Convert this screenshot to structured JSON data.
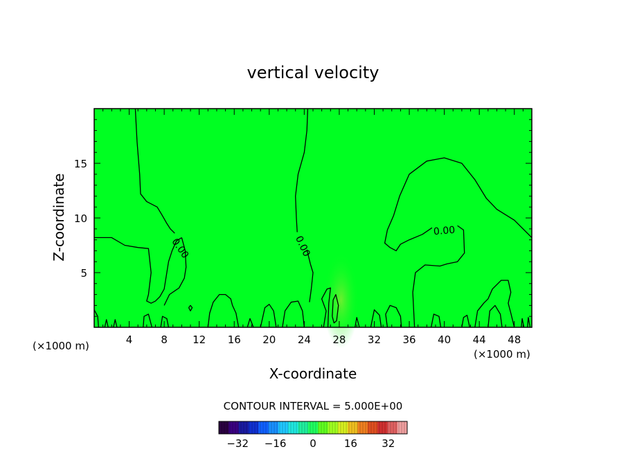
{
  "chart_data": {
    "type": "contour",
    "title": "vertical velocity",
    "xlabel": "X-coordinate",
    "ylabel": "Z-coordinate",
    "x_unit_left": "(×1000 m)",
    "x_unit_right": "(×1000 m)",
    "xlim": [
      0,
      50
    ],
    "ylim": [
      0,
      20
    ],
    "x_ticks": [
      4,
      8,
      12,
      16,
      20,
      24,
      28,
      32,
      36,
      40,
      44,
      48
    ],
    "y_ticks": [
      5,
      10,
      15
    ],
    "field_color": "#00ff22",
    "contour_interval_text": "CONTOUR INTERVAL = 5.000E+00",
    "contour_labels": [
      {
        "text": "0.00",
        "x": 9.8,
        "y": 7.2,
        "angle": 55
      },
      {
        "text": "0.00",
        "x": 23.8,
        "y": 7.4,
        "angle": 65
      },
      {
        "text": "0.00",
        "x": 40.0,
        "y": 8.8,
        "angle": -5
      }
    ],
    "contours": [
      {
        "points": [
          [
            0,
            8.2
          ],
          [
            2,
            8.2
          ],
          [
            3.5,
            7.5
          ],
          [
            5,
            7.3
          ],
          [
            6.2,
            7.2
          ],
          [
            6.5,
            5
          ],
          [
            6.2,
            3
          ],
          [
            6,
            2.4
          ],
          [
            6.5,
            2.2
          ],
          [
            7,
            2.4
          ],
          [
            7.5,
            2.8
          ],
          [
            8,
            3.5
          ],
          [
            8.3,
            5
          ],
          [
            8.5,
            6
          ],
          [
            8.9,
            7
          ],
          [
            9.4,
            7.9
          ],
          [
            10,
            8.2
          ]
        ]
      },
      {
        "points": [
          [
            10,
            8.2
          ],
          [
            10.4,
            7
          ],
          [
            10.5,
            5.5
          ],
          [
            10.3,
            4.5
          ],
          [
            9.7,
            3.6
          ],
          [
            8.6,
            3.0
          ],
          [
            8,
            2.0
          ]
        ]
      },
      {
        "points": [
          [
            4.7,
            20
          ],
          [
            4.9,
            17
          ],
          [
            5.2,
            14
          ],
          [
            5.3,
            12.2
          ],
          [
            6,
            11.5
          ],
          [
            7.2,
            11
          ],
          [
            7.8,
            10.2
          ],
          [
            8.3,
            9.5
          ],
          [
            8.7,
            9
          ],
          [
            9.2,
            8.6
          ]
        ]
      },
      {
        "points": [
          [
            24.4,
            20
          ],
          [
            24.3,
            18
          ],
          [
            24.0,
            16
          ],
          [
            23.3,
            14
          ],
          [
            23.0,
            12
          ],
          [
            23.1,
            10
          ],
          [
            23.2,
            8.7
          ]
        ]
      },
      {
        "points": [
          [
            24.3,
            7.1
          ],
          [
            24.7,
            5.8
          ],
          [
            25,
            5
          ],
          [
            24.8,
            3.5
          ],
          [
            24.6,
            2.3
          ]
        ]
      },
      {
        "points": [
          [
            38.6,
            9.1
          ],
          [
            37.5,
            8.5
          ],
          [
            36,
            8.0
          ],
          [
            35,
            7.6
          ],
          [
            34.5,
            7.0
          ],
          [
            33.8,
            7.3
          ],
          [
            33.2,
            7.7
          ],
          [
            33.5,
            8.9
          ],
          [
            34.2,
            10.2
          ],
          [
            34.9,
            12
          ],
          [
            36,
            14
          ],
          [
            38,
            15.2
          ],
          [
            40,
            15.5
          ],
          [
            42,
            15
          ],
          [
            43.5,
            13.5
          ],
          [
            44.8,
            11.8
          ],
          [
            46,
            10.8
          ],
          [
            48,
            9.8
          ],
          [
            50,
            8.2
          ]
        ]
      },
      {
        "points": [
          [
            41.5,
            9.3
          ],
          [
            42.2,
            8.9
          ],
          [
            42.3,
            6.8
          ],
          [
            41.5,
            6.0
          ],
          [
            40.3,
            5.8
          ],
          [
            39.5,
            5.6
          ],
          [
            37.8,
            5.7
          ],
          [
            36.7,
            5.0
          ],
          [
            36.4,
            3.2
          ],
          [
            36.6,
            0
          ]
        ]
      },
      {
        "points": [
          [
            27.2,
            1.0
          ],
          [
            27.4,
            0.4
          ],
          [
            27.7,
            0.6
          ],
          [
            27.9,
            2.0
          ],
          [
            27.6,
            3.0
          ],
          [
            27.3,
            2.5
          ],
          [
            27.2,
            1.0
          ]
        ]
      },
      {
        "points": [
          [
            13,
            0
          ],
          [
            13.2,
            1.3
          ],
          [
            13.6,
            2.3
          ],
          [
            14.3,
            3.0
          ],
          [
            15,
            3.0
          ],
          [
            15.6,
            2.6
          ],
          [
            15.8,
            2.0
          ],
          [
            16.2,
            1.3
          ],
          [
            16.5,
            0
          ]
        ]
      },
      {
        "points": [
          [
            19,
            0
          ],
          [
            19.5,
            1.8
          ],
          [
            20,
            2.1
          ],
          [
            20.5,
            1.5
          ],
          [
            20.8,
            0
          ]
        ]
      },
      {
        "points": [
          [
            21.5,
            0
          ],
          [
            21.8,
            1.5
          ],
          [
            22.5,
            2.3
          ],
          [
            23.3,
            2.4
          ],
          [
            23.8,
            1.5
          ],
          [
            24,
            0
          ]
        ]
      },
      {
        "points": [
          [
            26.2,
            0
          ],
          [
            26.5,
            1.5
          ],
          [
            26.0,
            2.6
          ],
          [
            26.6,
            3.5
          ],
          [
            27.0,
            3.6
          ],
          [
            26.8,
            2.2
          ],
          [
            26.7,
            0
          ]
        ]
      },
      {
        "points": [
          [
            33.5,
            0
          ],
          [
            33.3,
            1.2
          ],
          [
            33.8,
            2.0
          ],
          [
            34.5,
            1.8
          ],
          [
            35,
            1.0
          ],
          [
            35.1,
            0
          ]
        ]
      },
      {
        "points": [
          [
            43.5,
            0
          ],
          [
            43.8,
            1.5
          ],
          [
            44.5,
            2.2
          ],
          [
            45,
            2.6
          ],
          [
            45.5,
            3.5
          ],
          [
            46.5,
            4.3
          ],
          [
            47.3,
            4.3
          ],
          [
            47.6,
            3.2
          ],
          [
            47.3,
            2.2
          ],
          [
            47.6,
            1.3
          ],
          [
            48,
            0
          ]
        ]
      },
      {
        "points": [
          [
            45,
            0
          ],
          [
            45.2,
            1.5
          ],
          [
            45.8,
            2.0
          ],
          [
            46.4,
            1.2
          ],
          [
            46.6,
            0
          ]
        ]
      },
      {
        "points": [
          [
            42.0,
            0
          ],
          [
            42.2,
            0.9
          ],
          [
            42.6,
            1.1
          ],
          [
            42.9,
            0
          ]
        ]
      },
      {
        "points": [
          [
            5.6,
            0
          ],
          [
            5.7,
            1.0
          ],
          [
            6.2,
            1.2
          ],
          [
            6.6,
            0
          ]
        ]
      },
      {
        "points": [
          [
            7.6,
            0
          ],
          [
            7.8,
            1.0
          ],
          [
            8.3,
            0.8
          ],
          [
            8.5,
            0
          ]
        ]
      },
      {
        "points": [
          [
            31.6,
            0
          ],
          [
            32.0,
            1.6
          ],
          [
            32.6,
            1.1
          ],
          [
            32.8,
            0
          ]
        ]
      },
      {
        "points": [
          [
            38.5,
            0
          ],
          [
            38.8,
            1.2
          ],
          [
            39.4,
            1.0
          ],
          [
            39.6,
            0
          ]
        ]
      },
      {
        "points": [
          [
            17.5,
            0
          ],
          [
            17.8,
            0.8
          ],
          [
            18.2,
            0
          ]
        ]
      },
      {
        "points": [
          [
            0,
            1.6
          ],
          [
            0.4,
            1.0
          ],
          [
            0.5,
            0
          ]
        ]
      },
      {
        "points": [
          [
            1.2,
            0
          ],
          [
            1.4,
            0.7
          ],
          [
            1.6,
            0
          ]
        ]
      },
      {
        "points": [
          [
            2.2,
            0
          ],
          [
            2.4,
            0.7
          ],
          [
            2.6,
            0
          ]
        ]
      },
      {
        "points": [
          [
            10.8,
            1.8
          ],
          [
            11.0,
            1.5
          ],
          [
            11.2,
            1.8
          ],
          [
            11.0,
            2.0
          ],
          [
            10.8,
            1.8
          ]
        ]
      },
      {
        "points": [
          [
            29.8,
            0
          ],
          [
            30.0,
            0.9
          ],
          [
            30.3,
            0
          ]
        ]
      },
      {
        "points": [
          [
            48.8,
            0
          ],
          [
            48.9,
            0.8
          ],
          [
            49.1,
            0
          ]
        ]
      },
      {
        "points": [
          [
            49.5,
            0
          ],
          [
            49.6,
            0.9
          ],
          [
            49.8,
            0
          ]
        ]
      }
    ],
    "colorbar": {
      "min": -40,
      "max": 40,
      "ticks": [
        -32,
        -16,
        0,
        16,
        32
      ],
      "tick_labels": [
        "−32",
        "−16",
        "0",
        "16",
        "32"
      ],
      "colors": [
        "#2a0040",
        "#3a0080",
        "#1a1aa0",
        "#1030d0",
        "#1060ff",
        "#1a90ff",
        "#20c8ff",
        "#20e8e0",
        "#20f0a0",
        "#20ff60",
        "#60ff20",
        "#a0ff20",
        "#d8f020",
        "#f0c020",
        "#f08020",
        "#e05020",
        "#d03030",
        "#e06060",
        "#f0a0a0"
      ]
    }
  }
}
